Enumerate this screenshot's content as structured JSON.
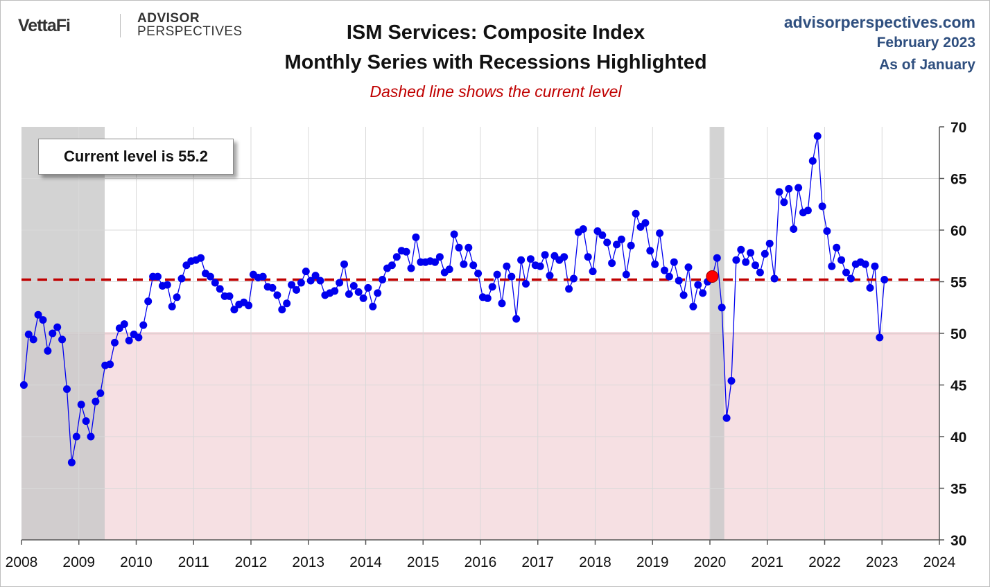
{
  "branding": {
    "logo_left": "VettaFi",
    "logo_right_line1": "ADVISOR",
    "logo_right_line2": "PERSPECTIVES",
    "site": "advisorperspectives.com",
    "date": "February 2023",
    "as_of": "As of January"
  },
  "colors": {
    "series": "#0000ee",
    "current_line": "#c00000",
    "recession": "#c8c8c8",
    "contraction_zone": "#f6e0e3",
    "highlight_point": "#ff0000"
  },
  "chart_data": {
    "type": "line",
    "title": "ISM Services: Composite Index",
    "subtitle_line": "Monthly Series with Recessions Highlighted",
    "annotation": "Dashed line shows the current level",
    "callout": "Current level is 55.2",
    "current_level": 55.2,
    "contraction_threshold": 50,
    "xlim": [
      2008,
      2024
    ],
    "ylim": [
      30,
      70
    ],
    "x_ticks": [
      "2008",
      "2009",
      "2010",
      "2011",
      "2012",
      "2013",
      "2014",
      "2015",
      "2016",
      "2017",
      "2018",
      "2019",
      "2020",
      "2021",
      "2022",
      "2023",
      "2024"
    ],
    "y_ticks": [
      "30",
      "35",
      "40",
      "45",
      "50",
      "55",
      "60",
      "65",
      "70"
    ],
    "recessions": [
      [
        2008.0,
        2009.45
      ],
      [
        2020.0,
        2020.25
      ]
    ],
    "highlight_point": {
      "x": 2020.04,
      "y": 55.5
    },
    "series": [
      {
        "name": "ISM Services Composite",
        "start": "2008-01",
        "values": [
          45.0,
          49.9,
          49.4,
          51.8,
          51.3,
          48.3,
          50.0,
          50.6,
          49.4,
          44.6,
          37.5,
          40.0,
          43.1,
          41.5,
          40.0,
          43.4,
          44.2,
          46.9,
          47.0,
          49.1,
          50.5,
          50.9,
          49.3,
          49.9,
          49.6,
          50.8,
          53.1,
          55.5,
          55.5,
          54.6,
          54.7,
          52.6,
          53.5,
          55.3,
          56.6,
          57.0,
          57.1,
          57.3,
          55.8,
          55.5,
          54.9,
          54.3,
          53.6,
          53.6,
          52.3,
          52.8,
          53.0,
          52.7,
          55.7,
          55.4,
          55.5,
          54.5,
          54.4,
          53.7,
          52.3,
          52.9,
          54.7,
          54.2,
          54.9,
          56.0,
          55.1,
          55.6,
          55.1,
          53.7,
          53.9,
          54.1,
          54.9,
          56.7,
          53.8,
          54.6,
          54.0,
          53.4,
          54.4,
          52.6,
          53.9,
          55.2,
          56.3,
          56.6,
          57.4,
          58.0,
          57.9,
          56.3,
          59.3,
          56.9,
          56.9,
          57.0,
          56.9,
          57.4,
          55.9,
          56.2,
          59.6,
          58.3,
          56.7,
          58.3,
          56.6,
          55.8,
          53.5,
          53.4,
          54.5,
          55.7,
          52.9,
          56.5,
          55.5,
          51.4,
          57.1,
          54.8,
          57.2,
          56.6,
          56.5,
          57.6,
          55.6,
          57.5,
          57.1,
          57.4,
          54.3,
          55.3,
          59.8,
          60.1,
          57.4,
          56.0,
          59.9,
          59.5,
          58.8,
          56.8,
          58.6,
          59.1,
          55.7,
          58.5,
          61.6,
          60.3,
          60.7,
          58.0,
          56.7,
          59.7,
          56.1,
          55.5,
          56.9,
          55.1,
          53.7,
          56.4,
          52.6,
          54.7,
          53.9,
          55.0,
          55.5,
          57.3,
          52.5,
          41.8,
          45.4,
          57.1,
          58.1,
          56.9,
          57.8,
          56.6,
          55.9,
          57.7,
          58.7,
          55.3,
          63.7,
          62.7,
          64.0,
          60.1,
          64.1,
          61.7,
          61.9,
          66.7,
          69.1,
          62.3,
          59.9,
          56.5,
          58.3,
          57.1,
          55.9,
          55.3,
          56.7,
          56.9,
          56.7,
          54.4,
          56.5,
          49.6,
          55.2
        ]
      }
    ]
  }
}
